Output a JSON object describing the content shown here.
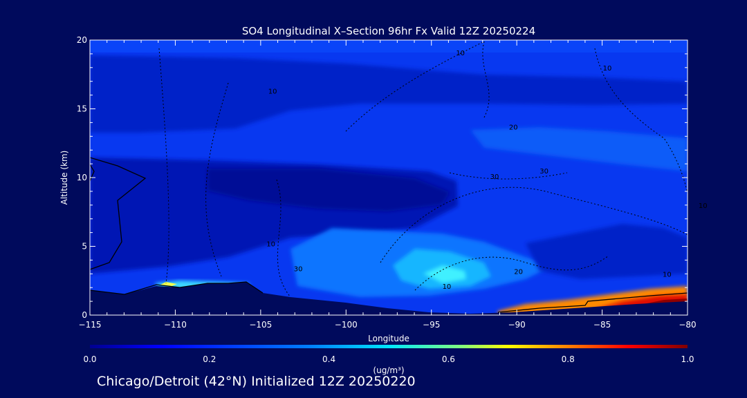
{
  "chart_data": {
    "type": "heatmap",
    "title": "SO4 Longitudinal X–Section 96hr  Fx Valid 12Z 20250224",
    "xlabel": "Longitude",
    "ylabel": "Altitude (km)",
    "xlim": [
      -115,
      -80
    ],
    "ylim": [
      0,
      20
    ],
    "x_ticks": [
      -115,
      -110,
      -105,
      -100,
      -95,
      -90,
      -85,
      -80
    ],
    "x_tick_labels": [
      "−115",
      "−110",
      "−105",
      "−100",
      "−95",
      "−90",
      "−85",
      "−80"
    ],
    "y_ticks": [
      0,
      5,
      10,
      15,
      20
    ],
    "y_tick_labels": [
      "0",
      "5",
      "10",
      "15",
      "20"
    ],
    "colorbar": {
      "min": 0.0,
      "max": 1.0,
      "ticks": [
        0.0,
        0.2,
        0.4,
        0.6,
        0.8,
        1.0
      ],
      "tick_labels": [
        "0.0",
        "0.2",
        "0.4",
        "0.6",
        "0.8",
        "1.0"
      ],
      "units": "(ug/m³)"
    },
    "contour_labels": [
      {
        "text": "10",
        "lon": -93.3,
        "alt": 19.1
      },
      {
        "text": "20",
        "lon": -90.2,
        "alt": 13.7
      },
      {
        "text": "30",
        "lon": -88.4,
        "alt": 10.5
      },
      {
        "text": "30",
        "lon": -91.3,
        "alt": 10.1
      },
      {
        "text": "10",
        "lon": -84.7,
        "alt": 18.0
      },
      {
        "text": "10",
        "lon": -79.1,
        "alt": 8.0
      },
      {
        "text": "10",
        "lon": -104.3,
        "alt": 16.3
      },
      {
        "text": "10",
        "lon": -104.4,
        "alt": 5.2
      },
      {
        "text": "20",
        "lon": -89.9,
        "alt": 3.2
      },
      {
        "text": "10",
        "lon": -94.1,
        "alt": 2.1
      },
      {
        "text": "30",
        "lon": -102.8,
        "alt": 3.4
      },
      {
        "text": "10",
        "lon": -81.2,
        "alt": 3.0
      }
    ]
  },
  "caption": "Chicago/Detroit (42°N) Initialized 12Z 20250220",
  "colors": {
    "background": "#000a5c",
    "colormap": [
      "#00008f",
      "#0000ff",
      "#0080ff",
      "#00ffff",
      "#80ff80",
      "#ffff00",
      "#ff8000",
      "#ff0000",
      "#800000"
    ]
  }
}
